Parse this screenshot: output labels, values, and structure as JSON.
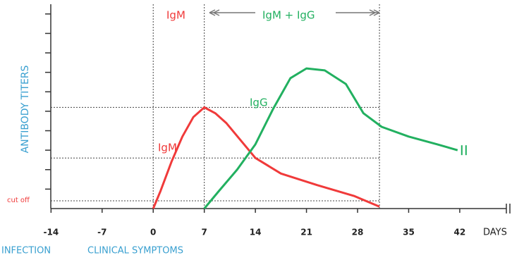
{
  "chart_data": {
    "type": "line",
    "ylabel": "ANTIBODY TITERS",
    "xlabel": "DAYS",
    "xlim": [
      -15,
      48
    ],
    "xticks": [
      -14,
      -7,
      0,
      7,
      14,
      21,
      28,
      35,
      42
    ],
    "ylim": [
      0,
      10.5
    ],
    "yticks": [
      1,
      2,
      3,
      4,
      5,
      6,
      7,
      8,
      9,
      10
    ],
    "series": [
      {
        "name": "IgM",
        "color": "#f03a3a",
        "x": [
          0,
          1,
          2.5,
          4,
          5.5,
          7,
          8.5,
          10,
          12,
          14,
          17.5,
          22.5,
          27.5,
          31
        ],
        "values": [
          0,
          0.9,
          2.4,
          3.7,
          4.7,
          5.2,
          4.9,
          4.4,
          3.5,
          2.6,
          1.8,
          1.2,
          0.65,
          0.1
        ]
      },
      {
        "name": "IgG",
        "color": "#22b060",
        "x": [
          7,
          9,
          11.5,
          14,
          16.4,
          18.8,
          21,
          23.5,
          26.4,
          28.8,
          31.3,
          35,
          38.9,
          41.7
        ],
        "values": [
          0,
          0.9,
          2,
          3.3,
          5.1,
          6.7,
          7.2,
          7.1,
          6.4,
          4.9,
          4.2,
          3.7,
          3.3,
          3.0
        ]
      }
    ],
    "hlines": [
      5.2,
      2.6,
      0.4
    ],
    "vlines": [
      0,
      7,
      31
    ],
    "annotations": [
      "IgM",
      "IgM + IgG",
      "cut off",
      "INFECTION",
      "CLINICAL SYMPTOMS"
    ]
  }
}
